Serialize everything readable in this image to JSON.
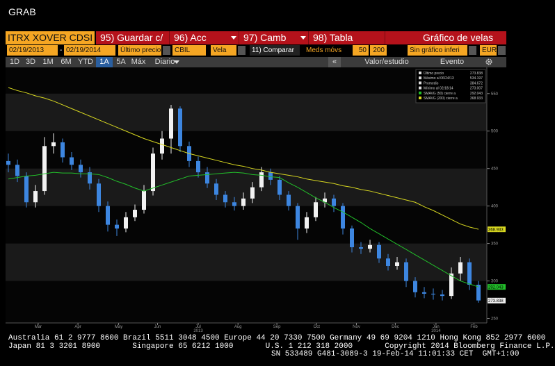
{
  "window_title": "GRAB",
  "toolbar": {
    "security": "ITRX XOVER CDSI",
    "buttons": [
      "95) Guardar c/",
      "96) Acc",
      "97) Camb",
      "98) Tabla"
    ],
    "view": "Gráfico de velas"
  },
  "settings": {
    "start_date": "02/19/2013",
    "separator": "-",
    "end_date": "02/19/2014",
    "field": "Último precio",
    "source": "CBIL",
    "style": "Vela",
    "compare": "11) Comparar",
    "ma_label": "Meds móvs",
    "ma_periods": [
      50,
      200
    ],
    "lower": "Sin gráfico inferi",
    "currency": "EUR"
  },
  "periods": {
    "items": [
      "1D",
      "3D",
      "1M",
      "6M",
      "YTD",
      "1A",
      "5A",
      "Máx",
      "Diario"
    ],
    "active": 5,
    "collapse": "«",
    "study": "Valor/estudio",
    "event": "Evento"
  },
  "chart_data": {
    "type": "candlestick",
    "categories": [
      null,
      null,
      null,
      null,
      null,
      null,
      null,
      null,
      null,
      null,
      null,
      null,
      null,
      null,
      null,
      null,
      null,
      null,
      null,
      null,
      null,
      null,
      null,
      null,
      null,
      null,
      null,
      null,
      null,
      null,
      null,
      null,
      null,
      null,
      null,
      null,
      null,
      null,
      null,
      null,
      null,
      null,
      null,
      null,
      null,
      null,
      null,
      null,
      null,
      null,
      null,
      null,
      null
    ],
    "open": [
      460,
      455,
      440,
      405,
      420,
      480,
      485,
      465,
      455,
      445,
      430,
      400,
      375,
      370,
      385,
      395,
      420,
      470,
      490,
      530,
      480,
      460,
      445,
      430,
      415,
      405,
      400,
      410,
      425,
      445,
      435,
      415,
      400,
      370,
      385,
      405,
      410,
      400,
      370,
      345,
      343,
      348,
      330,
      320,
      325,
      300,
      285,
      283,
      282,
      280,
      310,
      325,
      295
    ],
    "high": [
      470,
      462,
      445,
      428,
      492,
      497,
      490,
      472,
      462,
      452,
      436,
      406,
      382,
      392,
      402,
      428,
      478,
      500,
      535,
      533,
      486,
      466,
      452,
      436,
      420,
      412,
      418,
      432,
      452,
      450,
      440,
      420,
      404,
      392,
      412,
      418,
      415,
      404,
      374,
      352,
      355,
      352,
      336,
      332,
      330,
      305,
      292,
      290,
      288,
      318,
      332,
      330,
      300
    ],
    "low": [
      445,
      432,
      398,
      398,
      415,
      470,
      458,
      448,
      438,
      422,
      392,
      366,
      360,
      365,
      380,
      390,
      414,
      462,
      470,
      472,
      452,
      438,
      424,
      408,
      398,
      394,
      395,
      404,
      420,
      428,
      408,
      394,
      355,
      364,
      380,
      398,
      392,
      362,
      338,
      336,
      338,
      324,
      314,
      315,
      292,
      278,
      277,
      275,
      274,
      276,
      300,
      288,
      271
    ],
    "close": [
      455,
      440,
      405,
      420,
      480,
      485,
      465,
      455,
      445,
      430,
      400,
      375,
      370,
      385,
      395,
      420,
      470,
      490,
      530,
      480,
      460,
      445,
      430,
      415,
      405,
      400,
      410,
      425,
      445,
      435,
      415,
      400,
      370,
      385,
      405,
      410,
      400,
      370,
      345,
      343,
      348,
      330,
      320,
      325,
      300,
      285,
      283,
      282,
      280,
      310,
      325,
      295,
      274
    ],
    "up_color": "#f2f2f2",
    "down_color": "#3d86e0",
    "series": [
      {
        "name": "SMAVG (50) cierre a",
        "color": "#22c02a",
        "last": 292.043,
        "values": [
          436,
          438,
          440,
          441,
          443,
          445,
          444,
          444,
          443,
          443,
          442,
          438,
          433,
          429,
          424,
          420,
          424,
          428,
          432,
          436,
          440,
          441,
          442,
          443,
          444,
          445,
          444,
          442,
          441,
          439,
          438,
          431,
          425,
          418,
          411,
          405,
          398,
          392,
          385,
          378,
          370,
          363,
          356,
          349,
          342,
          335,
          328,
          321,
          314,
          307,
          300,
          296,
          292
        ]
      },
      {
        "name": "SMAVG (200) cierre a",
        "color": "#d8d820",
        "last": 368.933,
        "values": [
          558,
          554,
          551,
          547,
          544,
          540,
          535,
          530,
          525,
          520,
          515,
          510,
          505,
          500,
          495,
          490,
          486,
          482,
          478,
          474,
          470,
          467,
          464,
          461,
          458,
          455,
          453,
          450,
          448,
          445,
          443,
          441,
          439,
          436,
          434,
          432,
          430,
          427,
          425,
          422,
          420,
          417,
          414,
          411,
          408,
          405,
          399,
          394,
          388,
          382,
          376,
          372,
          369
        ]
      }
    ],
    "stats": [
      {
        "label": "Último precio",
        "value": 273.838
      },
      {
        "label": "Máximo al 06/24/13",
        "value": 534.197
      },
      {
        "label": "Promedio",
        "value": 384.672
      },
      {
        "label": "Mínimo al 02/18/14",
        "value": 273.007
      }
    ],
    "ylim": [
      244,
      585
    ],
    "yticks": [
      250,
      300,
      350,
      400,
      450,
      500,
      550
    ],
    "xticks": [
      {
        "value": 3.3,
        "label": "Mar"
      },
      {
        "value": 7.7,
        "label": "Apr"
      },
      {
        "value": 12.2,
        "label": "May"
      },
      {
        "value": 16.5,
        "label": "Jun"
      },
      {
        "value": 21,
        "label": "Jul"
      },
      {
        "value": 25.4,
        "label": "Aug"
      },
      {
        "value": 29.7,
        "label": "Sep"
      },
      {
        "value": 34.1,
        "label": "Oct"
      },
      {
        "value": 38.5,
        "label": "Nov"
      },
      {
        "value": 42.8,
        "label": "Dec"
      },
      {
        "value": 47.3,
        "label": "Jan"
      },
      {
        "value": 51.5,
        "label": "Feb"
      }
    ],
    "year_ticks": [
      {
        "value": 21,
        "label": "2013"
      },
      {
        "value": 47.3,
        "label": "2014"
      }
    ]
  },
  "footer": [
    "Australia 61 2 9777 8600 Brazil 5511 3048 4500 Europe 44 20 7330 7500 Germany 49 69 9204 1210 Hong Kong 852 2977 6000",
    "Japan 81 3 3201 8900       Singapore 65 6212 1000       U.S. 1 212 318 2000       Copyright 2014 Bloomberg Finance L.P.",
    "SN 533489 G481-3089-3 19-Feb-14 11:01:33 CET  GMT+1:00"
  ]
}
